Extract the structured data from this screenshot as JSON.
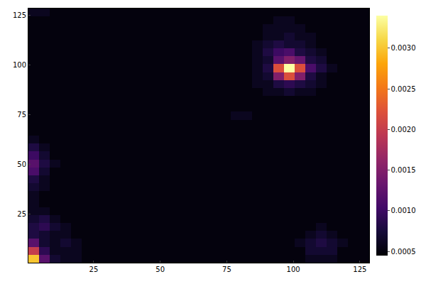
{
  "chart_data": {
    "type": "heatmap",
    "color": "inferno",
    "grid": false,
    "x": [
      2.5,
      6.5,
      10.5,
      14.5,
      18.5,
      22.5,
      26.5,
      30.5,
      34.5,
      38.5,
      42.5,
      46.5,
      50.5,
      54.5,
      58.5,
      62.5,
      66.5,
      70.5,
      74.5,
      78.5,
      82.5,
      86.5,
      90.5,
      94.5,
      98.5,
      102.5,
      106.5,
      110.5,
      114.5,
      118.5,
      122.5,
      126.5
    ],
    "y": [
      2.5,
      6.5,
      10.5,
      14.5,
      18.5,
      22.5,
      26.5,
      30.5,
      34.5,
      38.5,
      42.5,
      46.5,
      50.5,
      54.5,
      58.5,
      62.5,
      66.5,
      70.5,
      74.5,
      78.5,
      82.5,
      86.5,
      90.5,
      94.5,
      98.5,
      102.5,
      106.5,
      110.5,
      114.5,
      118.5,
      122.5,
      126.5
    ],
    "z": [
      [
        0.003,
        0.0012,
        0.0007,
        0.0006,
        0.0006,
        0.0005,
        0.0005,
        0.0005,
        0.0005,
        0.0005,
        0.0005,
        0.0005,
        0.0005,
        0.0005,
        0.0005,
        0.0005,
        0.0005,
        0.0005,
        0.0005,
        0.0005,
        0.0005,
        0.0005,
        0.0005,
        0.0005,
        0.0005,
        0.0005,
        0.0006,
        0.0006,
        0.0006,
        0.0005,
        0.0005,
        0.0005
      ],
      [
        0.002,
        0.0009,
        0.0006,
        0.0006,
        0.0006,
        0.0005,
        0.0005,
        0.0005,
        0.0005,
        0.0005,
        0.0005,
        0.0005,
        0.0005,
        0.0005,
        0.0005,
        0.0005,
        0.0005,
        0.0005,
        0.0005,
        0.0005,
        0.0005,
        0.0005,
        0.0005,
        0.0005,
        0.0005,
        0.0005,
        0.0007,
        0.0007,
        0.0007,
        0.0005,
        0.0005,
        0.0005
      ],
      [
        0.0012,
        0.0007,
        0.0006,
        0.0007,
        0.0006,
        0.0005,
        0.0005,
        0.0005,
        0.0005,
        0.0005,
        0.0005,
        0.0005,
        0.0005,
        0.0005,
        0.0005,
        0.0005,
        0.0005,
        0.0005,
        0.0005,
        0.0005,
        0.0005,
        0.0005,
        0.0005,
        0.0005,
        0.0005,
        0.0006,
        0.0007,
        0.0008,
        0.0007,
        0.0006,
        0.0005,
        0.0005
      ],
      [
        0.0008,
        0.0007,
        0.0006,
        0.0006,
        0.0005,
        0.0005,
        0.0005,
        0.0005,
        0.0005,
        0.0005,
        0.0005,
        0.0005,
        0.0005,
        0.0005,
        0.0005,
        0.0005,
        0.0005,
        0.0005,
        0.0005,
        0.0005,
        0.0005,
        0.0005,
        0.0005,
        0.0005,
        0.0005,
        0.0005,
        0.0006,
        0.0007,
        0.0006,
        0.0005,
        0.0005,
        0.0005
      ],
      [
        0.0008,
        0.0009,
        0.0007,
        0.0006,
        0.0005,
        0.0005,
        0.0005,
        0.0005,
        0.0005,
        0.0005,
        0.0005,
        0.0005,
        0.0005,
        0.0005,
        0.0005,
        0.0005,
        0.0005,
        0.0005,
        0.0005,
        0.0005,
        0.0005,
        0.0005,
        0.0005,
        0.0005,
        0.0005,
        0.0005,
        0.0005,
        0.0006,
        0.0005,
        0.0005,
        0.0005,
        0.0005
      ],
      [
        0.0007,
        0.0008,
        0.0006,
        0.0005,
        0.0005,
        0.0005,
        0.0005,
        0.0005,
        0.0005,
        0.0005,
        0.0005,
        0.0005,
        0.0005,
        0.0005,
        0.0005,
        0.0005,
        0.0005,
        0.0005,
        0.0005,
        0.0005,
        0.0005,
        0.0005,
        0.0005,
        0.0005,
        0.0005,
        0.0005,
        0.0005,
        0.0005,
        0.0005,
        0.0005,
        0.0005,
        0.0005
      ],
      [
        0.0006,
        0.0006,
        0.0005,
        0.0005,
        0.0005,
        0.0005,
        0.0005,
        0.0005,
        0.0005,
        0.0005,
        0.0005,
        0.0005,
        0.0005,
        0.0005,
        0.0005,
        0.0005,
        0.0005,
        0.0005,
        0.0005,
        0.0005,
        0.0005,
        0.0005,
        0.0005,
        0.0005,
        0.0005,
        0.0005,
        0.0005,
        0.0005,
        0.0005,
        0.0005,
        0.0005,
        0.0005
      ],
      [
        0.0006,
        0.0005,
        0.0005,
        0.0005,
        0.0005,
        0.0005,
        0.0005,
        0.0005,
        0.0005,
        0.0005,
        0.0005,
        0.0005,
        0.0005,
        0.0005,
        0.0005,
        0.0005,
        0.0005,
        0.0005,
        0.0005,
        0.0005,
        0.0005,
        0.0005,
        0.0005,
        0.0005,
        0.0005,
        0.0005,
        0.0005,
        0.0005,
        0.0005,
        0.0005,
        0.0005,
        0.0005
      ],
      [
        0.0006,
        0.0005,
        0.0005,
        0.0005,
        0.0005,
        0.0005,
        0.0005,
        0.0005,
        0.0005,
        0.0005,
        0.0005,
        0.0005,
        0.0005,
        0.0005,
        0.0005,
        0.0005,
        0.0005,
        0.0005,
        0.0005,
        0.0005,
        0.0005,
        0.0005,
        0.0005,
        0.0005,
        0.0005,
        0.0005,
        0.0005,
        0.0005,
        0.0005,
        0.0005,
        0.0005,
        0.0005
      ],
      [
        0.0007,
        0.0006,
        0.0005,
        0.0005,
        0.0005,
        0.0005,
        0.0005,
        0.0005,
        0.0005,
        0.0005,
        0.0005,
        0.0005,
        0.0005,
        0.0005,
        0.0005,
        0.0005,
        0.0005,
        0.0005,
        0.0005,
        0.0005,
        0.0005,
        0.0005,
        0.0005,
        0.0005,
        0.0005,
        0.0005,
        0.0005,
        0.0005,
        0.0005,
        0.0005,
        0.0005,
        0.0005
      ],
      [
        0.0008,
        0.0006,
        0.0005,
        0.0005,
        0.0005,
        0.0005,
        0.0005,
        0.0005,
        0.0005,
        0.0005,
        0.0005,
        0.0005,
        0.0005,
        0.0005,
        0.0005,
        0.0005,
        0.0005,
        0.0005,
        0.0005,
        0.0005,
        0.0005,
        0.0005,
        0.0005,
        0.0005,
        0.0005,
        0.0005,
        0.0005,
        0.0005,
        0.0005,
        0.0005,
        0.0005,
        0.0005
      ],
      [
        0.0011,
        0.0007,
        0.0005,
        0.0005,
        0.0005,
        0.0005,
        0.0005,
        0.0005,
        0.0005,
        0.0005,
        0.0005,
        0.0005,
        0.0005,
        0.0005,
        0.0005,
        0.0005,
        0.0005,
        0.0005,
        0.0005,
        0.0005,
        0.0005,
        0.0005,
        0.0005,
        0.0005,
        0.0005,
        0.0005,
        0.0005,
        0.0005,
        0.0005,
        0.0005,
        0.0005,
        0.0005
      ],
      [
        0.0012,
        0.0008,
        0.0006,
        0.0005,
        0.0005,
        0.0005,
        0.0005,
        0.0005,
        0.0005,
        0.0005,
        0.0005,
        0.0005,
        0.0005,
        0.0005,
        0.0005,
        0.0005,
        0.0005,
        0.0005,
        0.0005,
        0.0005,
        0.0005,
        0.0005,
        0.0005,
        0.0005,
        0.0005,
        0.0005,
        0.0005,
        0.0005,
        0.0005,
        0.0005,
        0.0005,
        0.0005
      ],
      [
        0.001,
        0.0007,
        0.0005,
        0.0005,
        0.0005,
        0.0005,
        0.0005,
        0.0005,
        0.0005,
        0.0005,
        0.0005,
        0.0005,
        0.0005,
        0.0005,
        0.0005,
        0.0005,
        0.0005,
        0.0005,
        0.0005,
        0.0005,
        0.0005,
        0.0005,
        0.0005,
        0.0005,
        0.0005,
        0.0005,
        0.0005,
        0.0005,
        0.0005,
        0.0005,
        0.0005,
        0.0005
      ],
      [
        0.0008,
        0.0006,
        0.0005,
        0.0005,
        0.0005,
        0.0005,
        0.0005,
        0.0005,
        0.0005,
        0.0005,
        0.0005,
        0.0005,
        0.0005,
        0.0005,
        0.0005,
        0.0005,
        0.0005,
        0.0005,
        0.0005,
        0.0005,
        0.0005,
        0.0005,
        0.0005,
        0.0005,
        0.0005,
        0.0005,
        0.0005,
        0.0005,
        0.0005,
        0.0005,
        0.0005,
        0.0005
      ],
      [
        0.0006,
        0.0005,
        0.0005,
        0.0005,
        0.0005,
        0.0005,
        0.0005,
        0.0005,
        0.0005,
        0.0005,
        0.0005,
        0.0005,
        0.0005,
        0.0005,
        0.0005,
        0.0005,
        0.0005,
        0.0005,
        0.0005,
        0.0005,
        0.0005,
        0.0005,
        0.0005,
        0.0005,
        0.0005,
        0.0005,
        0.0005,
        0.0005,
        0.0005,
        0.0005,
        0.0005,
        0.0005
      ],
      [
        0.0005,
        0.0005,
        0.0005,
        0.0005,
        0.0005,
        0.0005,
        0.0005,
        0.0005,
        0.0005,
        0.0005,
        0.0005,
        0.0005,
        0.0005,
        0.0005,
        0.0005,
        0.0005,
        0.0005,
        0.0005,
        0.0005,
        0.0005,
        0.0005,
        0.0005,
        0.0005,
        0.0005,
        0.0005,
        0.0005,
        0.0005,
        0.0005,
        0.0005,
        0.0005,
        0.0005,
        0.0005
      ],
      [
        0.0005,
        0.0005,
        0.0005,
        0.0005,
        0.0005,
        0.0005,
        0.0005,
        0.0005,
        0.0005,
        0.0005,
        0.0005,
        0.0005,
        0.0005,
        0.0005,
        0.0005,
        0.0005,
        0.0005,
        0.0005,
        0.0005,
        0.0005,
        0.0005,
        0.0005,
        0.0005,
        0.0005,
        0.0005,
        0.0005,
        0.0005,
        0.0005,
        0.0005,
        0.0005,
        0.0005,
        0.0005
      ],
      [
        0.0005,
        0.0005,
        0.0005,
        0.0005,
        0.0005,
        0.0005,
        0.0005,
        0.0005,
        0.0005,
        0.0005,
        0.0005,
        0.0005,
        0.0005,
        0.0005,
        0.0005,
        0.0005,
        0.0005,
        0.0005,
        0.0005,
        0.0006,
        0.0006,
        0.0005,
        0.0005,
        0.0005,
        0.0005,
        0.0005,
        0.0005,
        0.0005,
        0.0005,
        0.0005,
        0.0005,
        0.0005
      ],
      [
        0.0005,
        0.0005,
        0.0005,
        0.0005,
        0.0005,
        0.0005,
        0.0005,
        0.0005,
        0.0005,
        0.0005,
        0.0005,
        0.0005,
        0.0005,
        0.0005,
        0.0005,
        0.0005,
        0.0005,
        0.0005,
        0.0005,
        0.0005,
        0.0005,
        0.0005,
        0.0005,
        0.0005,
        0.0005,
        0.0005,
        0.0005,
        0.0005,
        0.0005,
        0.0005,
        0.0005,
        0.0005
      ],
      [
        0.0005,
        0.0005,
        0.0005,
        0.0005,
        0.0005,
        0.0005,
        0.0005,
        0.0005,
        0.0005,
        0.0005,
        0.0005,
        0.0005,
        0.0005,
        0.0005,
        0.0005,
        0.0005,
        0.0005,
        0.0005,
        0.0005,
        0.0005,
        0.0005,
        0.0005,
        0.0005,
        0.0005,
        0.0005,
        0.0005,
        0.0005,
        0.0005,
        0.0005,
        0.0005,
        0.0005,
        0.0005
      ],
      [
        0.0005,
        0.0005,
        0.0005,
        0.0005,
        0.0005,
        0.0005,
        0.0005,
        0.0005,
        0.0005,
        0.0005,
        0.0005,
        0.0005,
        0.0005,
        0.0005,
        0.0005,
        0.0005,
        0.0005,
        0.0005,
        0.0005,
        0.0005,
        0.0005,
        0.0005,
        0.0006,
        0.0006,
        0.0007,
        0.0006,
        0.0006,
        0.0005,
        0.0005,
        0.0005,
        0.0005,
        0.0005
      ],
      [
        0.0005,
        0.0005,
        0.0005,
        0.0005,
        0.0005,
        0.0005,
        0.0005,
        0.0005,
        0.0005,
        0.0005,
        0.0005,
        0.0005,
        0.0005,
        0.0005,
        0.0005,
        0.0005,
        0.0005,
        0.0005,
        0.0005,
        0.0005,
        0.0005,
        0.0006,
        0.0006,
        0.0008,
        0.0009,
        0.0008,
        0.0007,
        0.0006,
        0.0005,
        0.0005,
        0.0005,
        0.0005
      ],
      [
        0.0005,
        0.0005,
        0.0005,
        0.0005,
        0.0005,
        0.0005,
        0.0005,
        0.0005,
        0.0005,
        0.0005,
        0.0005,
        0.0005,
        0.0005,
        0.0005,
        0.0005,
        0.0005,
        0.0005,
        0.0005,
        0.0005,
        0.0005,
        0.0005,
        0.0006,
        0.0007,
        0.0015,
        0.0022,
        0.0015,
        0.0008,
        0.0006,
        0.0005,
        0.0005,
        0.0005,
        0.0005
      ],
      [
        0.0005,
        0.0005,
        0.0005,
        0.0005,
        0.0005,
        0.0005,
        0.0005,
        0.0005,
        0.0005,
        0.0005,
        0.0005,
        0.0005,
        0.0005,
        0.0005,
        0.0005,
        0.0005,
        0.0005,
        0.0005,
        0.0005,
        0.0005,
        0.0005,
        0.0006,
        0.0008,
        0.0022,
        0.0034,
        0.0022,
        0.0011,
        0.0008,
        0.0006,
        0.0005,
        0.0005,
        0.0005
      ],
      [
        0.0005,
        0.0005,
        0.0005,
        0.0005,
        0.0005,
        0.0005,
        0.0005,
        0.0005,
        0.0005,
        0.0005,
        0.0005,
        0.0005,
        0.0005,
        0.0005,
        0.0005,
        0.0005,
        0.0005,
        0.0005,
        0.0005,
        0.0005,
        0.0005,
        0.0006,
        0.0007,
        0.0012,
        0.0015,
        0.0013,
        0.0008,
        0.0007,
        0.0005,
        0.0005,
        0.0005,
        0.0005
      ],
      [
        0.0005,
        0.0005,
        0.0005,
        0.0005,
        0.0005,
        0.0005,
        0.0005,
        0.0005,
        0.0005,
        0.0005,
        0.0005,
        0.0005,
        0.0005,
        0.0005,
        0.0005,
        0.0005,
        0.0005,
        0.0005,
        0.0005,
        0.0005,
        0.0005,
        0.0006,
        0.0008,
        0.001,
        0.0011,
        0.0008,
        0.0007,
        0.0006,
        0.0005,
        0.0005,
        0.0005,
        0.0005
      ],
      [
        0.0005,
        0.0005,
        0.0005,
        0.0005,
        0.0005,
        0.0005,
        0.0005,
        0.0005,
        0.0005,
        0.0005,
        0.0005,
        0.0005,
        0.0005,
        0.0005,
        0.0005,
        0.0005,
        0.0005,
        0.0005,
        0.0005,
        0.0005,
        0.0005,
        0.0006,
        0.0007,
        0.0008,
        0.0007,
        0.0007,
        0.0006,
        0.0005,
        0.0005,
        0.0005,
        0.0005,
        0.0005
      ],
      [
        0.0005,
        0.0005,
        0.0005,
        0.0005,
        0.0005,
        0.0005,
        0.0005,
        0.0005,
        0.0005,
        0.0005,
        0.0005,
        0.0005,
        0.0005,
        0.0005,
        0.0005,
        0.0005,
        0.0005,
        0.0005,
        0.0005,
        0.0005,
        0.0005,
        0.0005,
        0.0006,
        0.0006,
        0.0007,
        0.0006,
        0.0006,
        0.0005,
        0.0005,
        0.0005,
        0.0005,
        0.0005
      ],
      [
        0.0005,
        0.0005,
        0.0005,
        0.0005,
        0.0005,
        0.0005,
        0.0005,
        0.0005,
        0.0005,
        0.0005,
        0.0005,
        0.0005,
        0.0005,
        0.0005,
        0.0005,
        0.0005,
        0.0005,
        0.0005,
        0.0005,
        0.0005,
        0.0005,
        0.0005,
        0.0006,
        0.0006,
        0.0006,
        0.0006,
        0.0005,
        0.0005,
        0.0005,
        0.0005,
        0.0005,
        0.0005
      ],
      [
        0.0005,
        0.0005,
        0.0005,
        0.0005,
        0.0005,
        0.0005,
        0.0005,
        0.0005,
        0.0005,
        0.0005,
        0.0005,
        0.0005,
        0.0005,
        0.0005,
        0.0005,
        0.0005,
        0.0005,
        0.0005,
        0.0005,
        0.0005,
        0.0005,
        0.0005,
        0.0005,
        0.0006,
        0.0006,
        0.0005,
        0.0005,
        0.0005,
        0.0005,
        0.0005,
        0.0005,
        0.0005
      ],
      [
        0.0006,
        0.0006,
        0.0005,
        0.0005,
        0.0005,
        0.0005,
        0.0005,
        0.0005,
        0.0005,
        0.0005,
        0.0005,
        0.0005,
        0.0005,
        0.0005,
        0.0005,
        0.0005,
        0.0005,
        0.0005,
        0.0005,
        0.0005,
        0.0005,
        0.0005,
        0.0005,
        0.0005,
        0.0005,
        0.0005,
        0.0005,
        0.0005,
        0.0005,
        0.0005,
        0.0005,
        0.0005
      ]
    ],
    "xlim": [
      0.5,
      128.5
    ],
    "xticks": [
      25,
      50,
      75,
      100,
      125
    ],
    "ylim": [
      0.5,
      128.5
    ],
    "yticks": [
      25,
      50,
      75,
      100,
      125
    ],
    "colorbar": {
      "range": [
        0.00045,
        0.0034
      ],
      "ticks": [
        {
          "value": 0.0005,
          "label": "0.0005"
        },
        {
          "value": 0.001,
          "label": "0.0010"
        },
        {
          "value": 0.0015,
          "label": "0.0015"
        },
        {
          "value": 0.002,
          "label": "0.0020"
        },
        {
          "value": 0.0025,
          "label": "0.0025"
        },
        {
          "value": 0.003,
          "label": "0.0030"
        }
      ]
    }
  }
}
